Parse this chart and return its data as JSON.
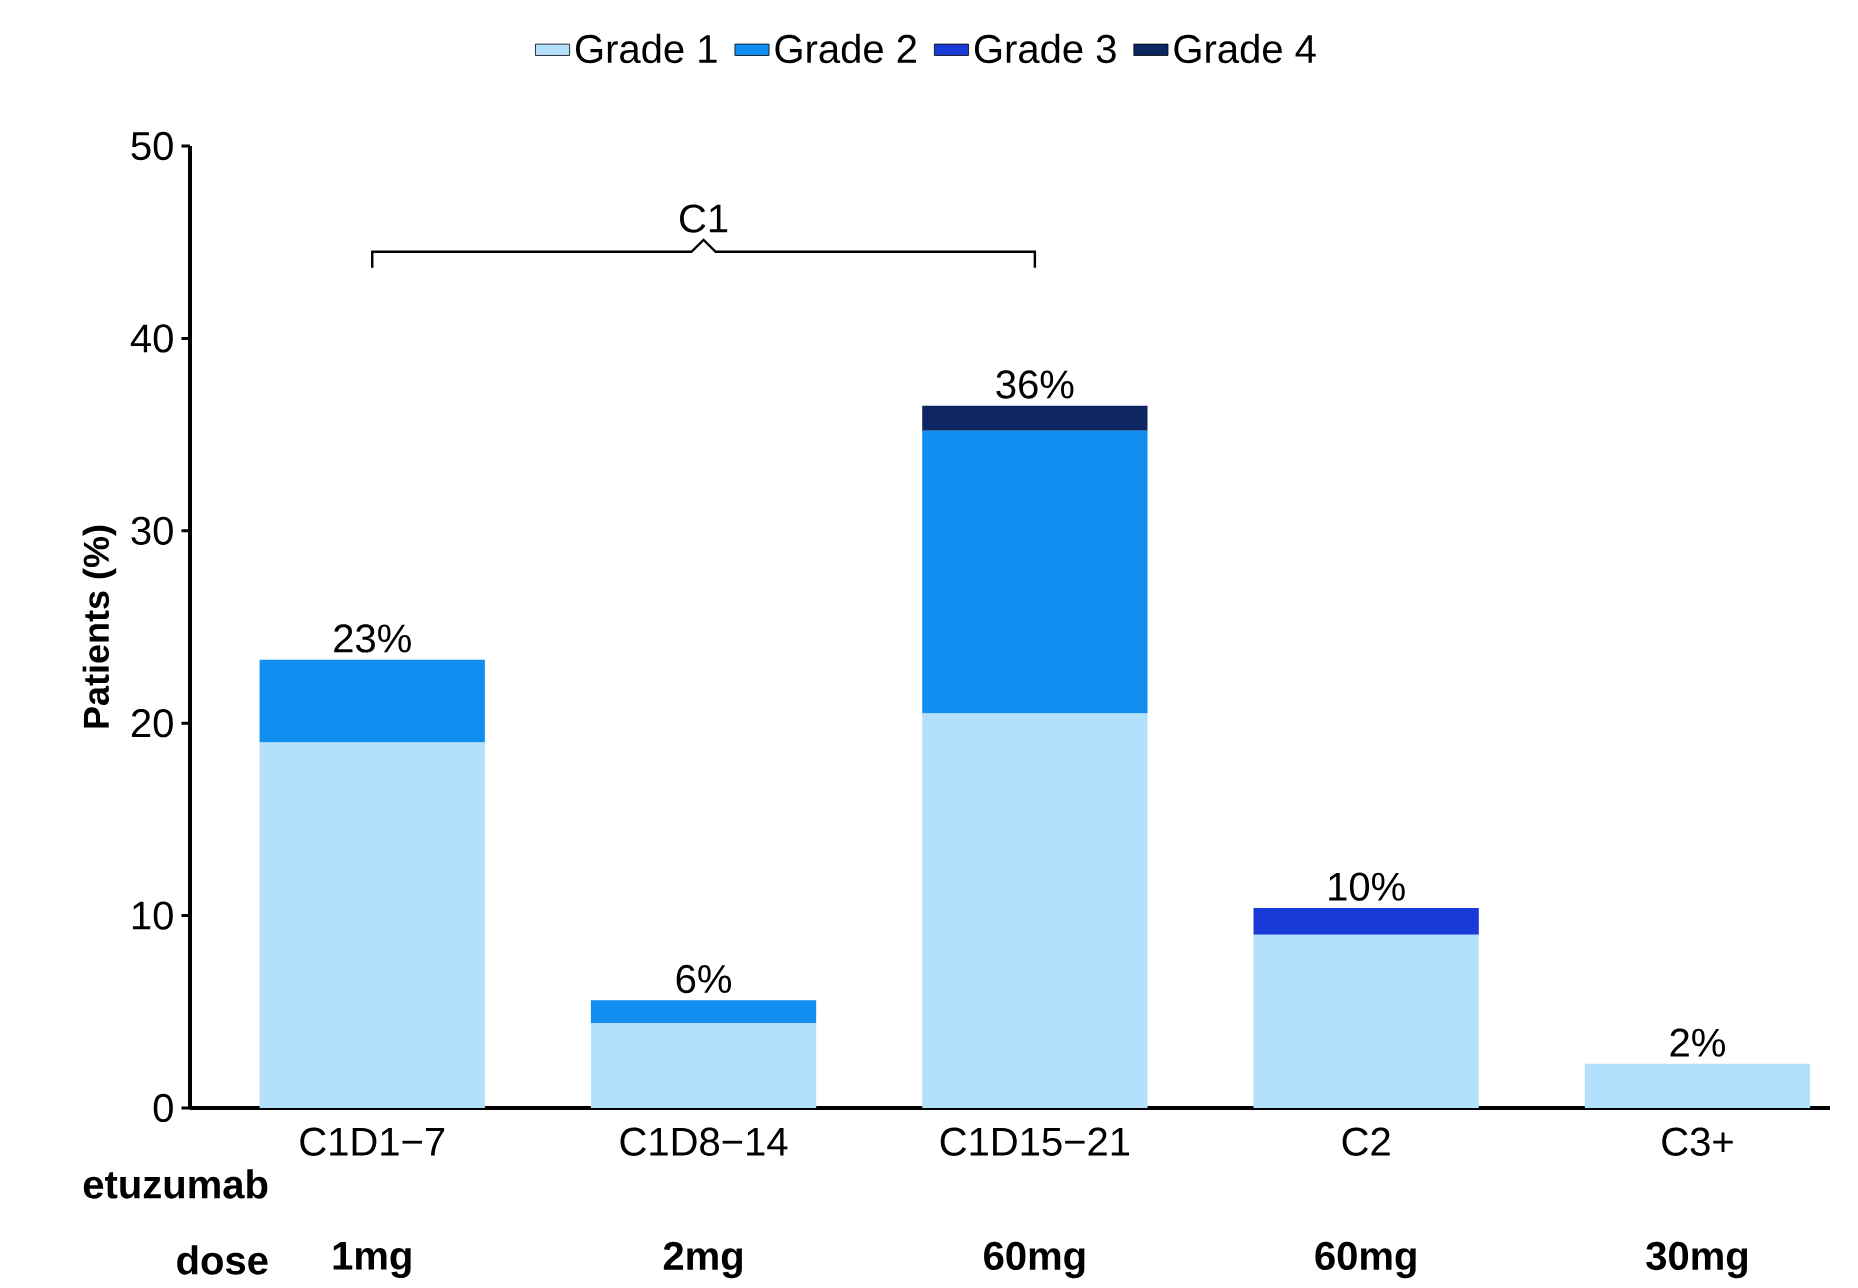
{
  "chart_data": {
    "type": "bar",
    "stacked": true,
    "ylabel": "Patients (%)",
    "categories": [
      "C1D1−7",
      "C1D8−14",
      "C1D15−21",
      "C2",
      "C3+"
    ],
    "series": [
      {
        "name": "Grade 1",
        "color": "#b3e0fb",
        "values": [
          19,
          4.4,
          20.5,
          9,
          2.3
        ]
      },
      {
        "name": "Grade 2",
        "color": "#118ef0",
        "values": [
          4.3,
          1.2,
          14.7,
          0,
          0
        ]
      },
      {
        "name": "Grade 3",
        "color": "#1a3ad8",
        "values": [
          0,
          0,
          0,
          1.4,
          0
        ]
      },
      {
        "name": "Grade 4",
        "color": "#0d2560",
        "values": [
          0,
          0,
          1.3,
          0,
          0
        ]
      }
    ],
    "totals": [
      "23%",
      "6%",
      "36%",
      "10%",
      "2%"
    ],
    "ylim": [
      0,
      50
    ],
    "yticks": [
      0,
      10,
      20,
      30,
      40,
      50
    ],
    "legend": "top",
    "annotations": [
      "C1",
      "etuzumab",
      "dose",
      "1mg",
      "2mg",
      "60mg",
      "60mg",
      "30mg"
    ]
  }
}
